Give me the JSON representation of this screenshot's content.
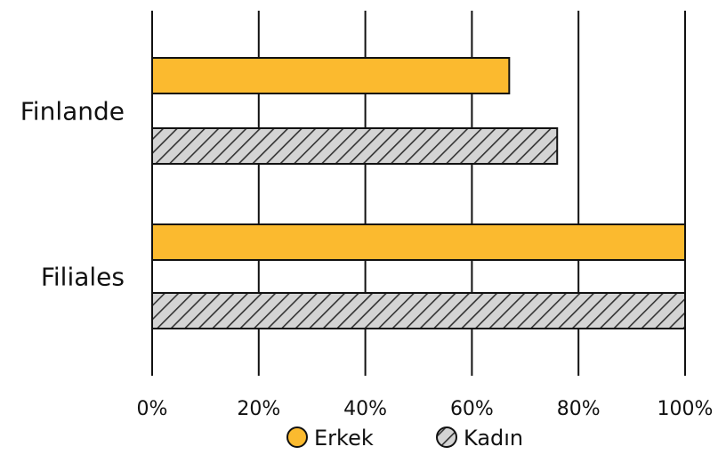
{
  "chart_data": {
    "type": "bar",
    "orientation": "horizontal",
    "categories": [
      "Finlande",
      "Filiales"
    ],
    "series": [
      {
        "name": "Erkek",
        "values": [
          67,
          100
        ],
        "color": "#FBBA2F",
        "pattern": "solid"
      },
      {
        "name": "Kadın",
        "values": [
          76,
          100
        ],
        "color": "#D4D4D4",
        "pattern": "diagonal-hatch"
      }
    ],
    "xlim": [
      0,
      100
    ],
    "x_ticks": [
      "0%",
      "20%",
      "40%",
      "60%",
      "80%",
      "100%"
    ],
    "grid": "vertical",
    "legend_position": "bottom",
    "title": "",
    "xlabel": "",
    "ylabel": ""
  }
}
